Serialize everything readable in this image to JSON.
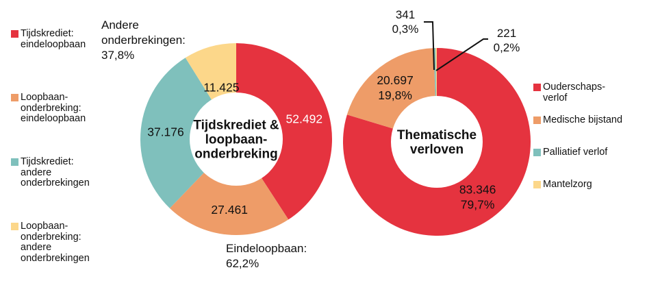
{
  "page": {
    "background": "#ffffff",
    "text_color": "#111111"
  },
  "colors": {
    "red": "#e5333f",
    "orange": "#ee9c68",
    "teal": "#7fc0bc",
    "yellow": "#fcd78a"
  },
  "chart_data": [
    {
      "type": "pie",
      "subtype": "donut",
      "title": "Tijdskrediet & loopbaan-onderbreking",
      "center_label_lines": [
        "Tijdskrediet &",
        "loopbaan-",
        "onderbreking"
      ],
      "categories": [
        "Tijdskrediet: eindeloopbaan",
        "Loopbaan-onderbreking: eindeloopbaan",
        "Tijdskrediet: andere onderbrekingen",
        "Loopbaan-onderbreking: andere onderbrekingen"
      ],
      "values": [
        52492,
        27461,
        37176,
        11425
      ],
      "colors": [
        "#e5333f",
        "#ee9c68",
        "#7fc0bc",
        "#fcd78a"
      ],
      "slice_labels": [
        [
          "52.492"
        ],
        [
          "27.461"
        ],
        [
          "37.176"
        ],
        [
          "11.425"
        ]
      ],
      "label_colors": [
        "#ffffff",
        "#111111",
        "#111111",
        "#111111"
      ],
      "label_radius": [
        0.74,
        0.74,
        0.74,
        0.56
      ],
      "annotations": [
        "Andere\nonderbrekingen:\n37,8%",
        "Eindeloopbaan:\n62,2%"
      ],
      "group_percentages": {
        "andere_onderbrekingen": "37,8%",
        "eindeloopbaan": "62,2%"
      },
      "legend_position": "left",
      "start_angle_deg": 0,
      "direction": "clockwise"
    },
    {
      "type": "pie",
      "subtype": "donut",
      "title": "Thematische verloven",
      "center_label_lines": [
        "Thematische",
        "verloven"
      ],
      "categories": [
        "Ouderschapsverlof",
        "Medische bijstand",
        "Palliatief verlof",
        "Mantelzorg"
      ],
      "values": [
        83346,
        20697,
        341,
        221
      ],
      "percentages": [
        "79,7%",
        "19,8%",
        "0,3%",
        "0,2%"
      ],
      "colors": [
        "#e5333f",
        "#ee9c68",
        "#7fc0bc",
        "#fcd78a"
      ],
      "slice_labels": [
        [
          "83.346",
          "79,7%"
        ],
        [
          "20.697",
          "19,8%"
        ],
        [],
        []
      ],
      "label_colors": [
        "#111111",
        "#111111",
        "#111111",
        "#111111"
      ],
      "label_radius": [
        0.73,
        0.73,
        0,
        0
      ],
      "callouts": [
        "341\n0,3%",
        "221\n0,2%"
      ],
      "legend_position": "right",
      "start_angle_deg": 0,
      "direction": "clockwise"
    }
  ],
  "legend_left": {
    "items": [
      {
        "label": "Tijdskrediet:\neindeloopbaan",
        "color": "#e5333f"
      },
      {
        "label": "Loopbaan-\nonderbreking:\neindeloopbaan",
        "color": "#ee9c68"
      },
      {
        "label": "Tijdskrediet:\nandere\nonderbrekingen",
        "color": "#7fc0bc"
      },
      {
        "label": "Loopbaan-\nonderbreking:\nandere\nonderbrekingen",
        "color": "#fcd78a"
      }
    ]
  },
  "legend_right": {
    "items": [
      {
        "label": "Ouderschaps-\nverlof",
        "color": "#e5333f"
      },
      {
        "label": "Medische bijstand",
        "color": "#ee9c68"
      },
      {
        "label": "Palliatief verlof",
        "color": "#7fc0bc"
      },
      {
        "label": "Mantelzorg",
        "color": "#fcd78a"
      }
    ]
  }
}
